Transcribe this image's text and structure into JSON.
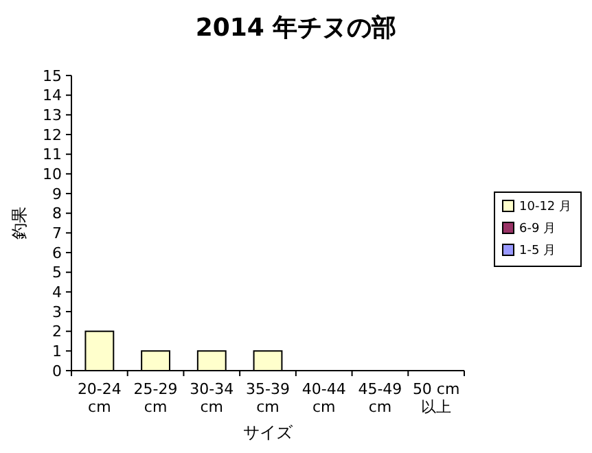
{
  "chart_data": {
    "type": "bar",
    "title": "2014 年チヌの部",
    "xlabel": "サイズ",
    "ylabel": "釣果",
    "categories": [
      "20-24 cm",
      "25-29 cm",
      "30-34 cm",
      "35-39 cm",
      "40-44 cm",
      "45-49 cm",
      "50 cm 以上"
    ],
    "series": [
      {
        "name": "10-12 月",
        "color": "#ffffcc",
        "values": [
          2,
          1,
          1,
          1,
          0,
          0,
          0
        ]
      },
      {
        "name": "6-9 月",
        "color": "#993366",
        "values": [
          0,
          0,
          0,
          0,
          0,
          0,
          0
        ]
      },
      {
        "name": "1-5 月",
        "color": "#9999ff",
        "values": [
          0,
          0,
          0,
          0,
          0,
          0,
          0
        ]
      }
    ],
    "stacked": true,
    "ylim": [
      0,
      15
    ],
    "yticks": [
      0,
      1,
      2,
      3,
      4,
      5,
      6,
      7,
      8,
      9,
      10,
      11,
      12,
      13,
      14,
      15
    ],
    "grid": false,
    "legend": "right"
  }
}
